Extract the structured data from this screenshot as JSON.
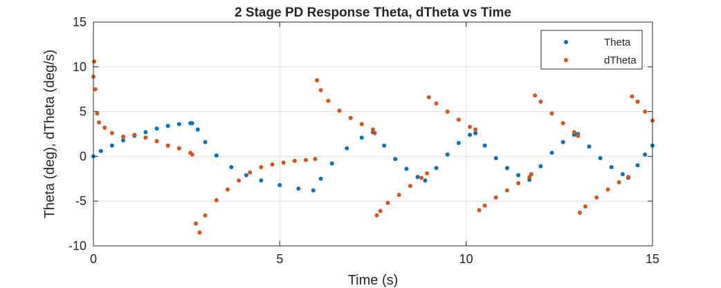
{
  "chart_data": {
    "type": "scatter",
    "title": "2 Stage PD Response  Theta, dTheta vs Time",
    "xlabel": "Time (s)",
    "ylabel": "Theta (deg), dTheta (deg/s)",
    "xlim": [
      0,
      15
    ],
    "ylim": [
      -10,
      15
    ],
    "xticks": [
      0,
      5,
      10,
      15
    ],
    "yticks": [
      -10,
      -5,
      0,
      5,
      10,
      15
    ],
    "xtick_labels": [
      "0",
      "5",
      "10",
      "15"
    ],
    "ytick_labels": [
      "-10",
      "-5",
      "0",
      "5",
      "10",
      "15"
    ],
    "grid": true,
    "legend_position": "top-right",
    "series": [
      {
        "name": "Theta",
        "color": "#0072BD",
        "marker": "dot",
        "points": [
          [
            0.0,
            0.0
          ],
          [
            0.2,
            0.6
          ],
          [
            0.5,
            1.2
          ],
          [
            0.8,
            1.8
          ],
          [
            1.1,
            2.3
          ],
          [
            1.4,
            2.7
          ],
          [
            1.7,
            3.1
          ],
          [
            2.0,
            3.4
          ],
          [
            2.3,
            3.6
          ],
          [
            2.6,
            3.7
          ],
          [
            2.65,
            3.7
          ],
          [
            2.8,
            3.0
          ],
          [
            3.0,
            1.6
          ],
          [
            3.3,
            0.1
          ],
          [
            3.7,
            -1.2
          ],
          [
            4.1,
            -2.1
          ],
          [
            4.5,
            -2.7
          ],
          [
            5.0,
            -3.2
          ],
          [
            5.5,
            -3.6
          ],
          [
            5.9,
            -3.8
          ],
          [
            6.1,
            -2.5
          ],
          [
            6.4,
            -0.8
          ],
          [
            6.8,
            0.9
          ],
          [
            7.2,
            2.1
          ],
          [
            7.5,
            2.7
          ],
          [
            7.8,
            1.2
          ],
          [
            8.1,
            -0.3
          ],
          [
            8.4,
            -1.4
          ],
          [
            8.7,
            -2.3
          ],
          [
            8.9,
            -2.7
          ],
          [
            9.2,
            -1.3
          ],
          [
            9.5,
            0.2
          ],
          [
            9.8,
            1.5
          ],
          [
            10.1,
            2.4
          ],
          [
            10.25,
            2.6
          ],
          [
            10.5,
            1.2
          ],
          [
            10.8,
            -0.2
          ],
          [
            11.1,
            -1.3
          ],
          [
            11.4,
            -2.1
          ],
          [
            11.7,
            -2.6
          ],
          [
            12.0,
            -1.1
          ],
          [
            12.3,
            0.4
          ],
          [
            12.6,
            1.6
          ],
          [
            12.9,
            2.4
          ],
          [
            13.0,
            2.5
          ],
          [
            13.3,
            1.1
          ],
          [
            13.6,
            -0.2
          ],
          [
            13.9,
            -1.2
          ],
          [
            14.2,
            -2.0
          ],
          [
            14.35,
            -2.4
          ],
          [
            14.6,
            -1.0
          ],
          [
            14.8,
            0.2
          ],
          [
            15.0,
            1.2
          ]
        ]
      },
      {
        "name": "dTheta",
        "color": "#D95319",
        "marker": "dot",
        "points": [
          [
            0.0,
            8.9
          ],
          [
            0.02,
            10.6
          ],
          [
            0.05,
            7.5
          ],
          [
            0.1,
            4.8
          ],
          [
            0.15,
            3.8
          ],
          [
            0.3,
            3.2
          ],
          [
            0.5,
            2.6
          ],
          [
            0.8,
            2.2
          ],
          [
            1.1,
            2.4
          ],
          [
            1.4,
            2.1
          ],
          [
            1.7,
            1.7
          ],
          [
            2.0,
            1.2
          ],
          [
            2.3,
            0.9
          ],
          [
            2.6,
            0.4
          ],
          [
            2.65,
            0.2
          ],
          [
            2.75,
            -7.5
          ],
          [
            2.85,
            -8.5
          ],
          [
            3.0,
            -6.6
          ],
          [
            3.3,
            -4.9
          ],
          [
            3.6,
            -3.7
          ],
          [
            3.9,
            -2.7
          ],
          [
            4.2,
            -1.8
          ],
          [
            4.5,
            -1.2
          ],
          [
            4.8,
            -0.9
          ],
          [
            5.1,
            -0.7
          ],
          [
            5.4,
            -0.5
          ],
          [
            5.7,
            -0.4
          ],
          [
            5.95,
            -0.3
          ],
          [
            6.0,
            8.5
          ],
          [
            6.1,
            7.4
          ],
          [
            6.3,
            6.2
          ],
          [
            6.6,
            5.1
          ],
          [
            6.9,
            4.3
          ],
          [
            7.2,
            3.6
          ],
          [
            7.5,
            3.0
          ],
          [
            7.55,
            2.6
          ],
          [
            7.6,
            -6.6
          ],
          [
            7.7,
            -6.1
          ],
          [
            7.9,
            -5.2
          ],
          [
            8.2,
            -4.3
          ],
          [
            8.5,
            -3.3
          ],
          [
            8.8,
            -2.4
          ],
          [
            8.95,
            -1.9
          ],
          [
            9.0,
            6.6
          ],
          [
            9.2,
            5.9
          ],
          [
            9.5,
            5.0
          ],
          [
            9.8,
            4.1
          ],
          [
            10.1,
            3.3
          ],
          [
            10.25,
            3.0
          ],
          [
            10.35,
            -6.0
          ],
          [
            10.5,
            -5.5
          ],
          [
            10.8,
            -4.6
          ],
          [
            11.1,
            -3.8
          ],
          [
            11.4,
            -3.0
          ],
          [
            11.7,
            -2.3
          ],
          [
            11.75,
            -2.0
          ],
          [
            11.85,
            6.8
          ],
          [
            12.0,
            6.1
          ],
          [
            12.3,
            4.8
          ],
          [
            12.6,
            3.7
          ],
          [
            12.9,
            2.7
          ],
          [
            13.0,
            2.3
          ],
          [
            13.05,
            -6.3
          ],
          [
            13.2,
            -5.6
          ],
          [
            13.5,
            -4.6
          ],
          [
            13.8,
            -3.7
          ],
          [
            14.1,
            -2.9
          ],
          [
            14.35,
            -2.3
          ],
          [
            14.45,
            6.7
          ],
          [
            14.6,
            6.1
          ],
          [
            14.8,
            5.0
          ],
          [
            15.0,
            4.0
          ]
        ]
      }
    ]
  }
}
